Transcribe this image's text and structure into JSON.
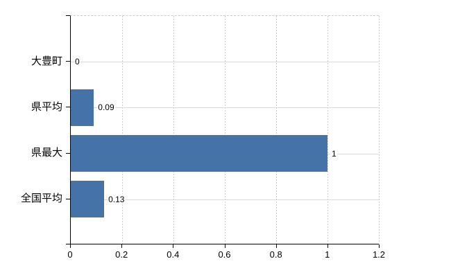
{
  "chart_data": {
    "type": "bar",
    "orientation": "horizontal",
    "title": "",
    "xlabel": "",
    "ylabel": "",
    "categories": [
      "大豊町",
      "県平均",
      "県最大",
      "全国平均"
    ],
    "values": [
      0,
      0.09,
      1,
      0.13
    ],
    "value_labels": [
      "0",
      "0.09",
      "1",
      "0.13"
    ],
    "xlim": [
      0,
      1.2
    ],
    "x_ticks": [
      0,
      0.2,
      0.4,
      0.6,
      0.8,
      1,
      1.2
    ],
    "x_tick_labels": [
      "0",
      "0.2",
      "0.4",
      "0.6",
      "0.8",
      "1",
      "1.2"
    ],
    "grid": true,
    "legend": false,
    "colors": {
      "bar": "#4572a7",
      "axis_line": "#000000",
      "grid_horizontal": "#d9d9d9",
      "grid_vertical_dashed": "#cccccc",
      "text": "#000000",
      "background": "#ffffff"
    }
  }
}
